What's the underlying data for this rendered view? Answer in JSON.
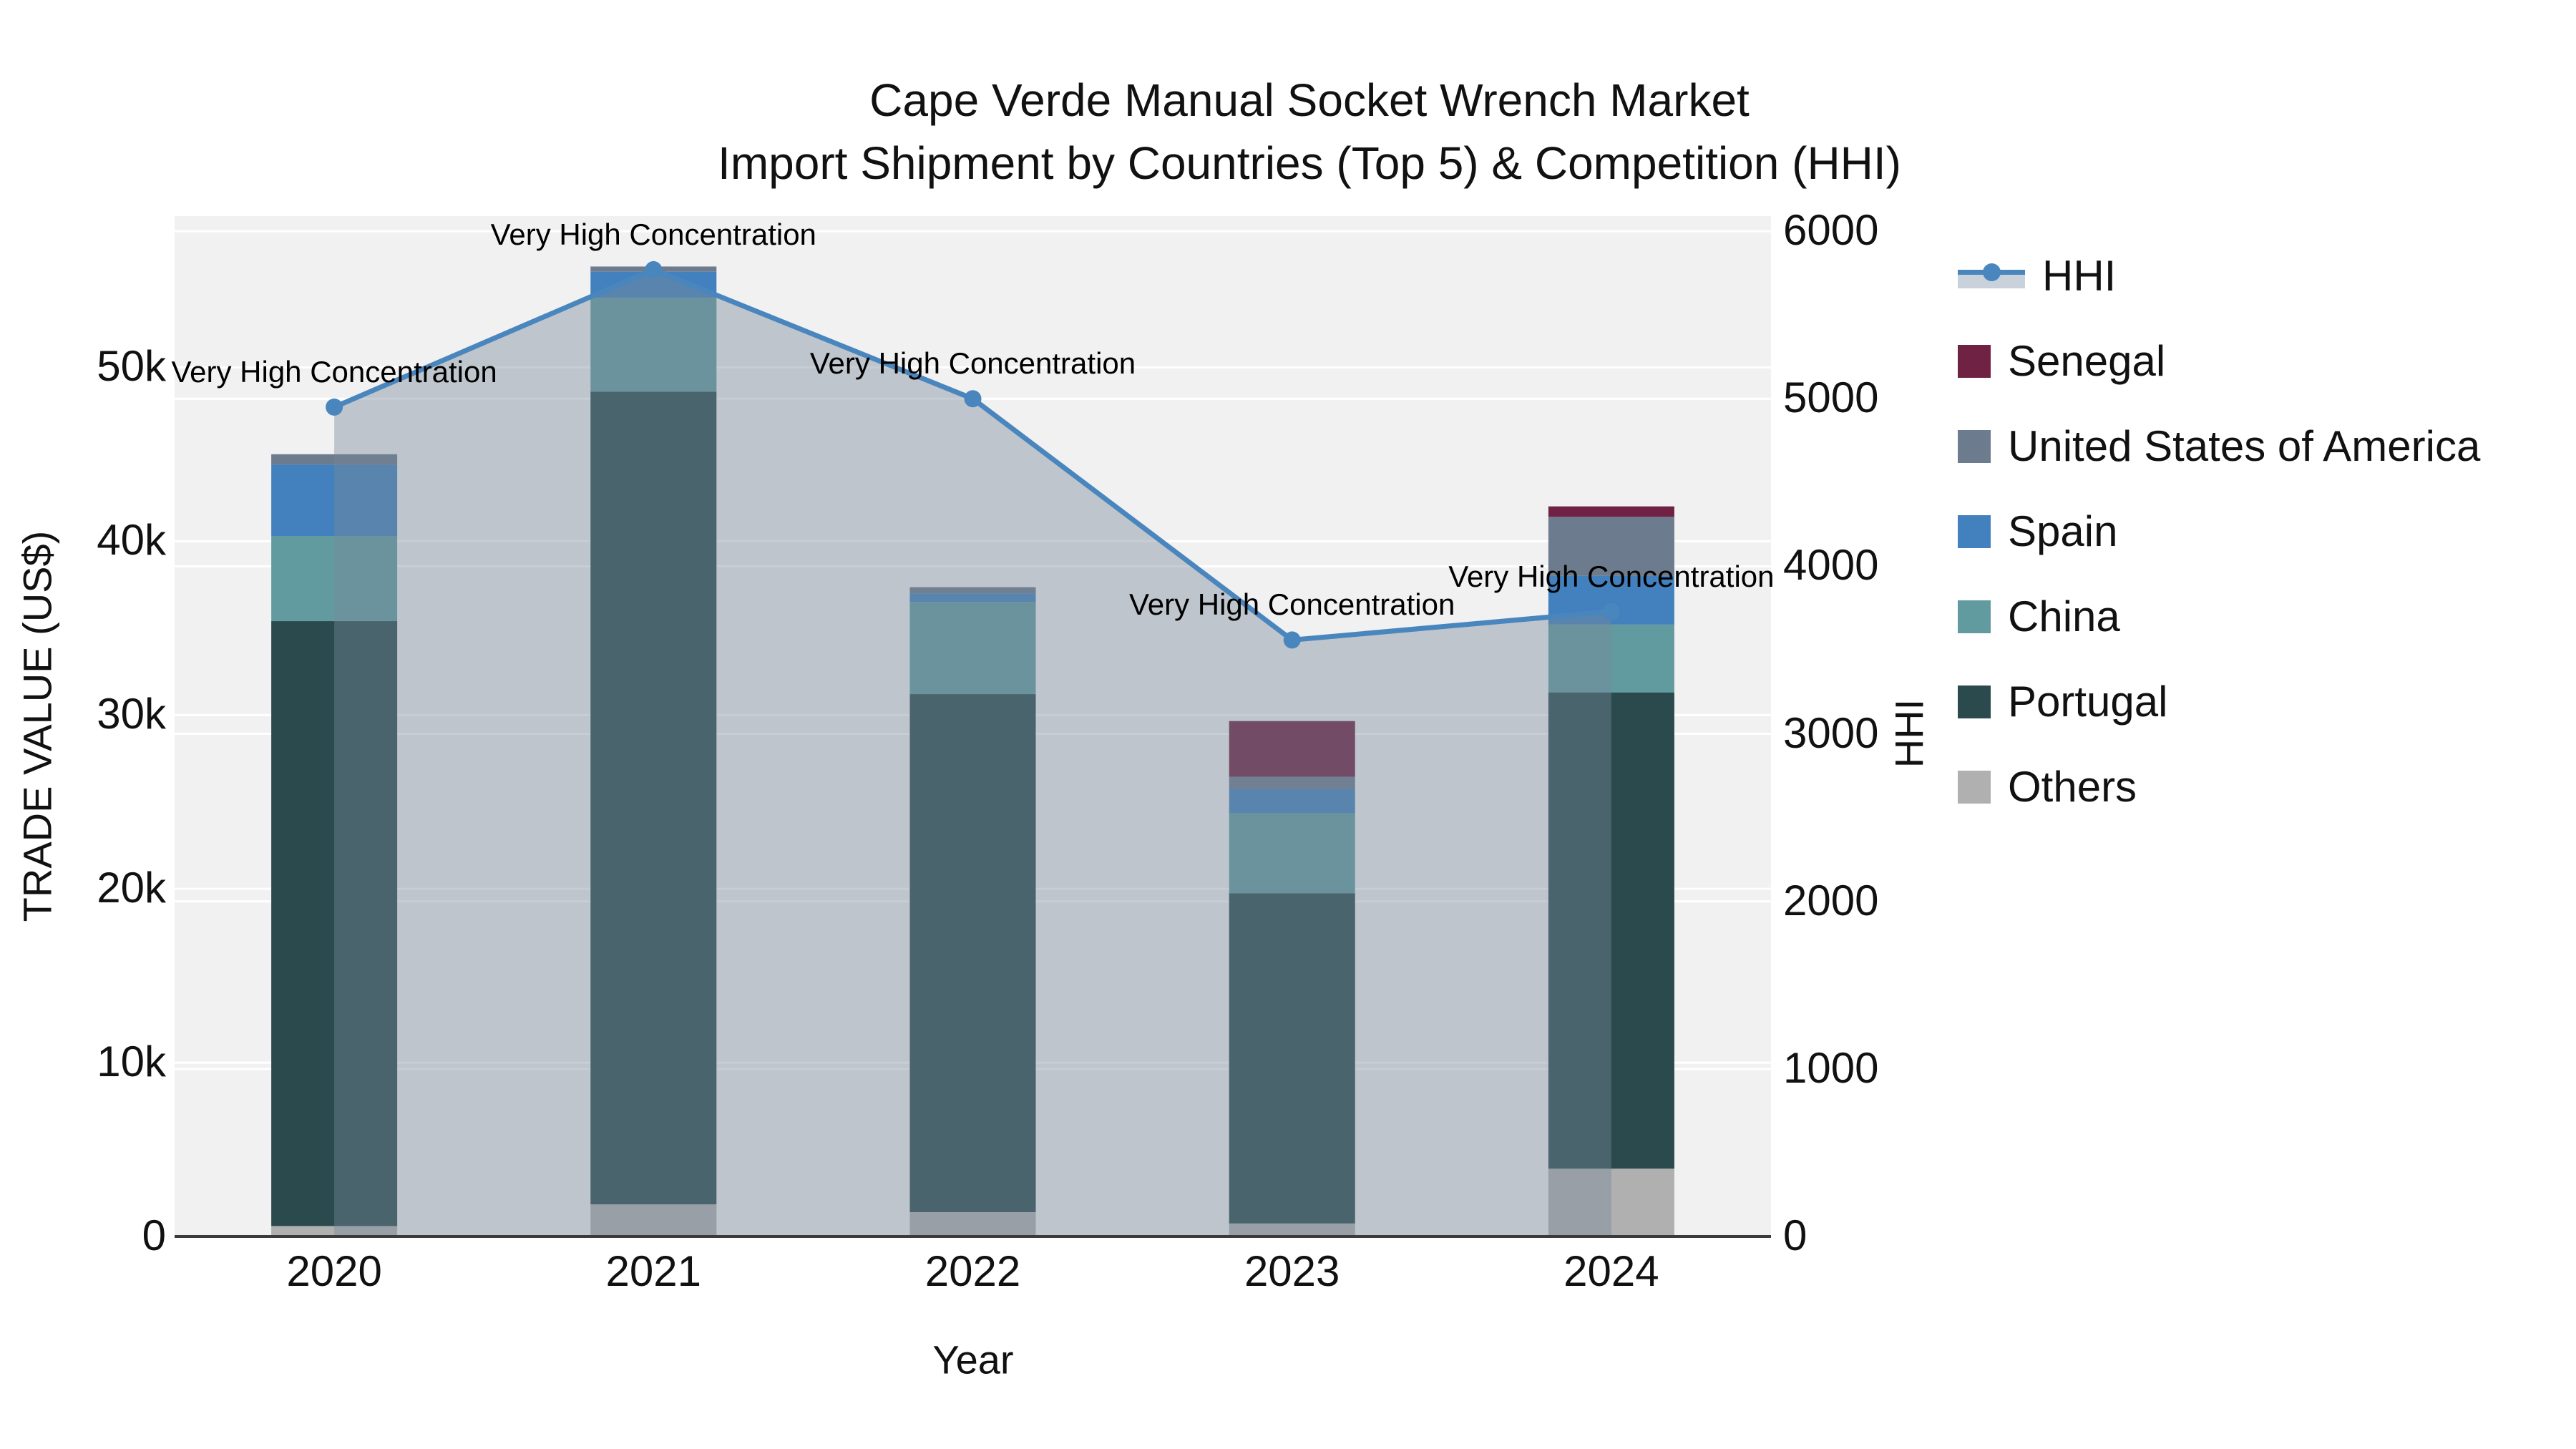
{
  "title": {
    "line1": "Cape Verde Manual Socket Wrench Market",
    "line2": "Import Shipment by Countries (Top 5) & Competition (HHI)"
  },
  "axes": {
    "x": {
      "title": "Year",
      "categories": [
        "2020",
        "2021",
        "2022",
        "2023",
        "2024"
      ]
    },
    "y_left": {
      "title": "TRADE VALUE (US$)",
      "tick_labels": [
        "0",
        "10k",
        "20k",
        "30k",
        "40k",
        "50k"
      ],
      "tick_values": [
        0,
        10000,
        20000,
        30000,
        40000,
        50000
      ],
      "range": [
        0,
        58700
      ]
    },
    "y_right": {
      "title": "HHI",
      "tick_labels": [
        "0",
        "1000",
        "2000",
        "3000",
        "4000",
        "5000",
        "6000"
      ],
      "tick_values": [
        0,
        1000,
        2000,
        3000,
        4000,
        5000,
        6000
      ],
      "range": [
        0,
        6090
      ]
    }
  },
  "legend": {
    "items": [
      {
        "label": "HHI",
        "type": "line",
        "color": "#4A86BE",
        "band": "#C9D1DB"
      },
      {
        "label": "Senegal",
        "type": "box",
        "color": "#6F2243"
      },
      {
        "label": "United States of America",
        "type": "box",
        "color": "#6C7B8D"
      },
      {
        "label": "Spain",
        "type": "box",
        "color": "#4281BE"
      },
      {
        "label": "China",
        "type": "box",
        "color": "#619BA0"
      },
      {
        "label": "Portugal",
        "type": "box",
        "color": "#2A4A4E"
      },
      {
        "label": "Others",
        "type": "box",
        "color": "#B0B0B0"
      }
    ]
  },
  "annotations": [
    {
      "text": "Very High Concentration",
      "year": "2020"
    },
    {
      "text": "Very High Concentration",
      "year": "2021"
    },
    {
      "text": "Very High Concentration",
      "year": "2022"
    },
    {
      "text": "Very High Concentration",
      "year": "2023"
    },
    {
      "text": "Very High Concentration",
      "year": "2024"
    }
  ],
  "chart_data": {
    "type": "bar",
    "stacked": true,
    "title": "Cape Verde Manual Socket Wrench Market — Import Shipment by Countries (Top 5) & Competition (HHI)",
    "xlabel": "Year",
    "ylabel_left": "TRADE VALUE (US$)",
    "ylabel_right": "HHI",
    "categories": [
      "2020",
      "2021",
      "2022",
      "2023",
      "2024"
    ],
    "series": [
      {
        "name": "Others",
        "color": "#B0B0B0",
        "values": [
          600,
          1850,
          1400,
          750,
          3900
        ]
      },
      {
        "name": "Portugal",
        "color": "#2A4A4E",
        "values": [
          34800,
          46750,
          29800,
          19000,
          27400
        ]
      },
      {
        "name": "China",
        "color": "#619BA0",
        "values": [
          4900,
          5400,
          5300,
          4600,
          3900
        ]
      },
      {
        "name": "Spain",
        "color": "#4281BE",
        "values": [
          4100,
          1500,
          500,
          1400,
          2800
        ]
      },
      {
        "name": "United States of America",
        "color": "#6C7B8D",
        "values": [
          600,
          300,
          350,
          700,
          3400
        ]
      },
      {
        "name": "Senegal",
        "color": "#6F2243",
        "values": [
          0,
          0,
          0,
          3200,
          600
        ]
      }
    ],
    "totals": [
      45000,
      55800,
      37350,
      29650,
      42000
    ],
    "line_series": {
      "name": "HHI",
      "axis": "y_right",
      "color": "#4A86BE",
      "area_fill_color": "rgba(119,136,153,0.42)",
      "values": [
        4950,
        5770,
        5000,
        3560,
        3730
      ]
    },
    "ylim_left": [
      0,
      58700
    ],
    "ylim_right": [
      0,
      6090
    ],
    "grid": true,
    "plot_bg": "#F1F1F1",
    "grid_color": "rgba(255,255,255,0.95)",
    "axisline_color": "#3B3B3B",
    "legend_position": "right"
  }
}
